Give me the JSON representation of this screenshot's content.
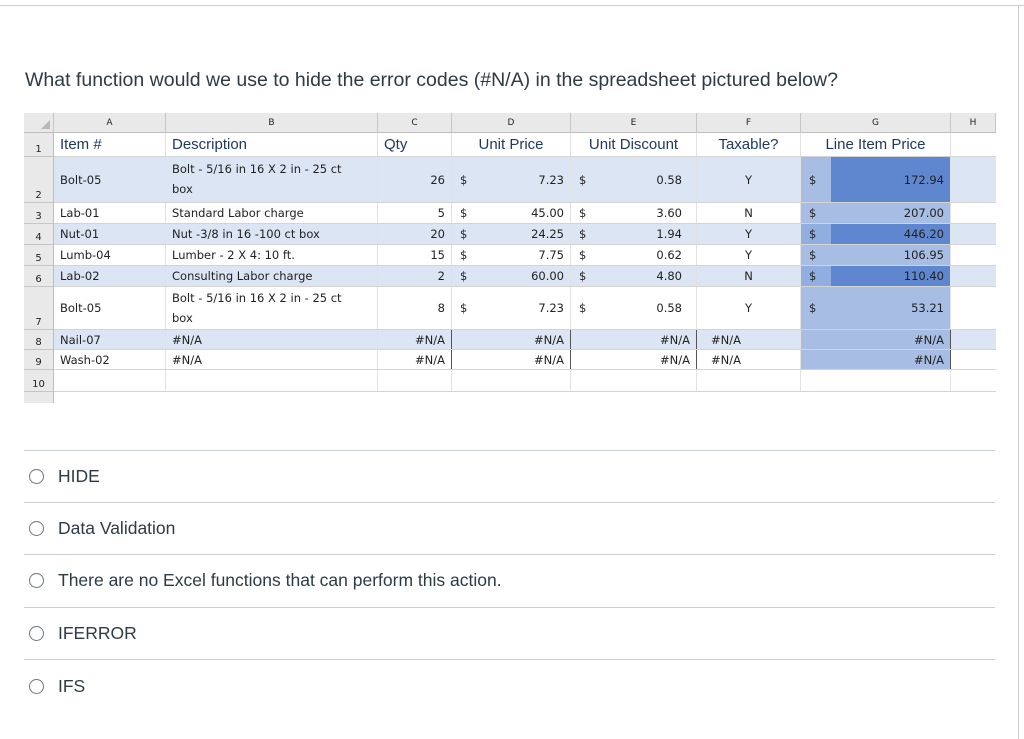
{
  "question": "What function would we use to hide the error codes (#N/A) in the spreadsheet pictured below?",
  "spreadsheet": {
    "column_letters": [
      "A",
      "B",
      "C",
      "D",
      "E",
      "F",
      "G",
      "H"
    ],
    "row_numbers": [
      "1",
      "2",
      "3",
      "4",
      "5",
      "6",
      "7",
      "8",
      "9",
      "10"
    ],
    "headers": {
      "item": "Item #",
      "description": "Description",
      "qty": "Qty",
      "unit_price": "Unit Price",
      "unit_discount": "Unit Discount",
      "taxable": "Taxable?",
      "line_item_price": "Line Item Price"
    },
    "rows": [
      {
        "item": "Bolt-05",
        "desc": "Bolt - 5/16 in 16 X 2 in - 25 ct box",
        "qty": "26",
        "price_sym": "$",
        "price": "7.23",
        "disc_sym": "$",
        "disc": "0.58",
        "taxable": "Y",
        "line_sym": "$",
        "line": "172.94"
      },
      {
        "item": "Lab-01",
        "desc": "Standard Labor charge",
        "qty": "5",
        "price_sym": "$",
        "price": "45.00",
        "disc_sym": "$",
        "disc": "3.60",
        "taxable": "N",
        "line_sym": "$",
        "line": "207.00"
      },
      {
        "item": "Nut-01",
        "desc": "Nut -3/8 in 16 -100 ct box",
        "qty": "20",
        "price_sym": "$",
        "price": "24.25",
        "disc_sym": "$",
        "disc": "1.94",
        "taxable": "Y",
        "line_sym": "$",
        "line": "446.20"
      },
      {
        "item": "Lumb-04",
        "desc": "Lumber - 2 X 4: 10 ft.",
        "qty": "15",
        "price_sym": "$",
        "price": "7.75",
        "disc_sym": "$",
        "disc": "0.62",
        "taxable": "Y",
        "line_sym": "$",
        "line": "106.95"
      },
      {
        "item": "Lab-02",
        "desc": "Consulting Labor charge",
        "qty": "2",
        "price_sym": "$",
        "price": "60.00",
        "disc_sym": "$",
        "disc": "4.80",
        "taxable": "N",
        "line_sym": "$",
        "line": "110.40"
      },
      {
        "item": "Bolt-05",
        "desc": "Bolt - 5/16 in 16 X 2 in - 25 ct box",
        "qty": "8",
        "price_sym": "$",
        "price": "7.23",
        "disc_sym": "$",
        "disc": "0.58",
        "taxable": "Y",
        "line_sym": "$",
        "line": "53.21"
      },
      {
        "item": "Nail-07",
        "desc": "#N/A",
        "qty": "#N/A",
        "price_sym": "",
        "price": "#N/A",
        "disc_sym": "",
        "disc": "#N/A",
        "taxable": "#N/A",
        "line_sym": "",
        "line": "#N/A"
      },
      {
        "item": "Wash-02",
        "desc": "#N/A",
        "qty": "#N/A",
        "price_sym": "",
        "price": "#N/A",
        "disc_sym": "",
        "disc": "#N/A",
        "taxable": "#N/A",
        "line_sym": "",
        "line": "#N/A"
      }
    ]
  },
  "options": [
    {
      "label": "HIDE"
    },
    {
      "label": "Data Validation"
    },
    {
      "label": "There are no Excel functions that can perform this action."
    },
    {
      "label": "IFERROR"
    },
    {
      "label": "IFS"
    }
  ]
}
